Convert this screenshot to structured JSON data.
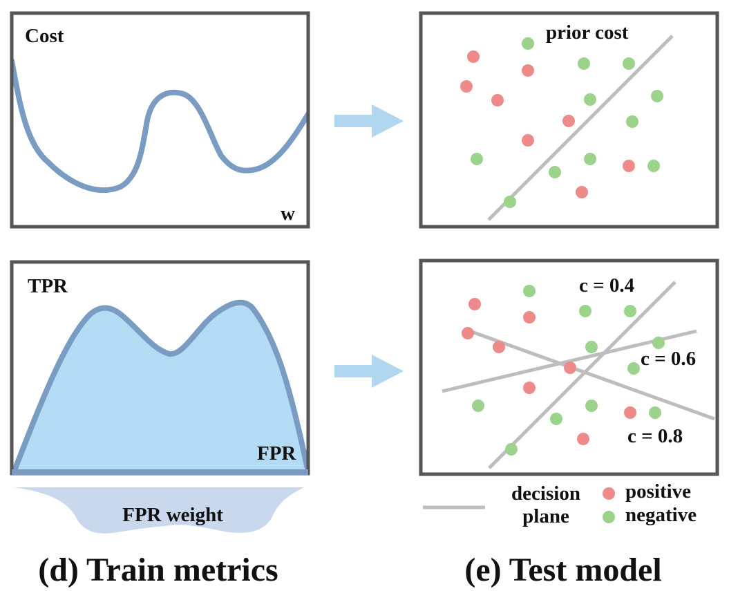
{
  "colors": {
    "frame": "#555555",
    "curve": "#7a9cc2",
    "area_fill": "#b3dbf4",
    "weight_fill": "#c9d8ec",
    "arrow": "#b0d6f0",
    "plane": "#bdbdbd",
    "positive": "#ef8a8a",
    "negative": "#9bd38c"
  },
  "panel_d": {
    "cost_label": "Cost",
    "w_label": "w",
    "tpr_label": "TPR",
    "fpr_label": "FPR",
    "fpr_weight_label": "FPR weight",
    "caption": "(d) Train metrics"
  },
  "panel_e": {
    "prior_cost_label": "prior cost",
    "c_labels": [
      "c = 0.4",
      "c = 0.6",
      "c = 0.8"
    ],
    "legend": {
      "decision_line1": "decision",
      "decision_line2": "plane",
      "positive": "positive",
      "negative": "negative"
    },
    "caption": "(e) Test model"
  }
}
